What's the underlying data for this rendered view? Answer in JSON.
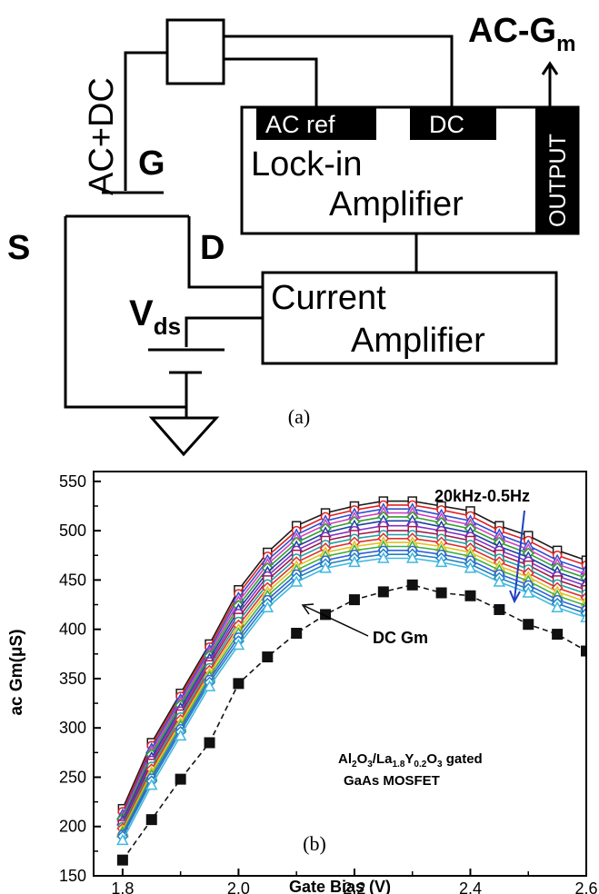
{
  "circuit": {
    "ac_dc_label": "AC+DC",
    "gate_label": "G",
    "source_label": "S",
    "drain_label": "D",
    "vds_main": "V",
    "vds_sub": "ds",
    "output_main": "AC-G",
    "output_sub": "m",
    "lockin": {
      "ac_ref": "AC ref",
      "dc": "DC",
      "output_tab": "OUTPUT",
      "line1": "Lock-in",
      "line2": "Amplifier"
    },
    "current_amp": {
      "line1": "Current",
      "line2": "Amplifier"
    },
    "caption": "(a)"
  },
  "chart_caption": "(b)",
  "chart_annotations": {
    "freq_range": "20kHz-0.5Hz",
    "dc_label": "DC Gm",
    "device_l1_p1": "Al",
    "device_l1_s1": "2",
    "device_l1_p2": "O",
    "device_l1_s2": "3",
    "device_l1_p3": "/La",
    "device_l1_s3": "1.8",
    "device_l1_p4": "Y",
    "device_l1_s4": "0.2",
    "device_l1_p5": "O",
    "device_l1_s5": "3",
    "device_l1_p6": " gated",
    "device_l2": "GaAs MOSFET"
  },
  "chart_data": {
    "type": "line",
    "xlabel": "Gate Bias (V)",
    "ylabel": "ac Gm(μS)",
    "xlim": [
      1.75,
      2.6
    ],
    "ylim": [
      150,
      560
    ],
    "xticks": [
      "1.8",
      "2.0",
      "2.2",
      "2.4",
      "2.6"
    ],
    "yticks": [
      "150",
      "200",
      "250",
      "300",
      "350",
      "400",
      "450",
      "500",
      "550"
    ],
    "x": [
      1.8,
      1.85,
      1.9,
      1.95,
      2.0,
      2.05,
      2.1,
      2.15,
      2.2,
      2.25,
      2.3,
      2.35,
      2.4,
      2.45,
      2.5,
      2.55,
      2.6
    ],
    "series": [
      {
        "values": [
          218,
          285,
          335,
          385,
          440,
          478,
          505,
          518,
          525,
          530,
          530,
          525,
          520,
          505,
          495,
          480,
          470
        ],
        "color": "#1a1a1a",
        "marker": "square-open"
      },
      {
        "values": [
          215,
          282,
          332,
          382,
          436,
          474,
          500,
          514,
          521,
          526,
          526,
          521,
          515,
          500,
          490,
          475,
          465
        ],
        "color": "#e02020",
        "marker": "circle-open"
      },
      {
        "values": [
          212,
          279,
          329,
          379,
          432,
          470,
          496,
          510,
          517,
          522,
          522,
          516,
          510,
          496,
          485,
          470,
          460
        ],
        "color": "#3050d0",
        "marker": "triangle-open"
      },
      {
        "values": [
          210,
          276,
          326,
          376,
          428,
          466,
          492,
          506,
          513,
          518,
          518,
          512,
          506,
          492,
          481,
          466,
          456
        ],
        "color": "#d040c0",
        "marker": "triangle-open"
      },
      {
        "values": [
          208,
          273,
          323,
          373,
          424,
          462,
          488,
          502,
          509,
          514,
          514,
          508,
          502,
          488,
          477,
          462,
          452
        ],
        "color": "#30a030",
        "marker": "diamond-open"
      },
      {
        "values": [
          206,
          270,
          320,
          370,
          420,
          458,
          484,
          498,
          505,
          510,
          510,
          504,
          498,
          484,
          473,
          458,
          448
        ],
        "color": "#2040a0",
        "marker": "triangle-open"
      },
      {
        "values": [
          204,
          267,
          317,
          367,
          416,
          454,
          480,
          494,
          500,
          505,
          505,
          500,
          494,
          480,
          469,
          454,
          444
        ],
        "color": "#8030c0",
        "marker": "circle-open"
      },
      {
        "values": [
          202,
          264,
          314,
          364,
          412,
          450,
          476,
          490,
          496,
          500,
          500,
          496,
          490,
          476,
          465,
          450,
          440
        ],
        "color": "#a01a50",
        "marker": "square-open"
      },
      {
        "values": [
          200,
          261,
          311,
          361,
          408,
          446,
          472,
          486,
          492,
          496,
          496,
          492,
          486,
          472,
          461,
          446,
          436
        ],
        "color": "#20a0a0",
        "marker": "circle-open"
      },
      {
        "values": [
          198,
          258,
          308,
          358,
          404,
          442,
          468,
          482,
          488,
          492,
          492,
          488,
          482,
          468,
          457,
          442,
          432
        ],
        "color": "#e03030",
        "marker": "diamond-open"
      },
      {
        "values": [
          196,
          255,
          305,
          355,
          400,
          438,
          464,
          478,
          484,
          488,
          488,
          484,
          478,
          464,
          453,
          438,
          428
        ],
        "color": "#e0c020",
        "marker": "triangle-open"
      },
      {
        "values": [
          194,
          252,
          302,
          352,
          396,
          434,
          460,
          474,
          480,
          484,
          484,
          480,
          474,
          460,
          449,
          434,
          424
        ],
        "color": "#40b040",
        "marker": "triangle-open"
      },
      {
        "values": [
          192,
          249,
          299,
          349,
          392,
          430,
          456,
          470,
          476,
          480,
          480,
          476,
          470,
          456,
          445,
          430,
          420
        ],
        "color": "#3060e0",
        "marker": "circle-open"
      },
      {
        "values": [
          190,
          246,
          296,
          346,
          388,
          426,
          452,
          466,
          472,
          476,
          476,
          472,
          466,
          452,
          441,
          426,
          416
        ],
        "color": "#2080c0",
        "marker": "diamond-open"
      },
      {
        "values": [
          186,
          242,
          292,
          342,
          384,
          422,
          448,
          462,
          468,
          472,
          472,
          468,
          462,
          448,
          437,
          422,
          412
        ],
        "color": "#40b8e0",
        "marker": "triangle-open"
      },
      {
        "values": [
          166,
          207,
          248,
          285,
          345,
          372,
          396,
          415,
          430,
          438,
          445,
          437,
          434,
          420,
          405,
          395,
          378
        ],
        "color": "#111111",
        "marker": "square-filled",
        "dashed": true
      }
    ]
  }
}
